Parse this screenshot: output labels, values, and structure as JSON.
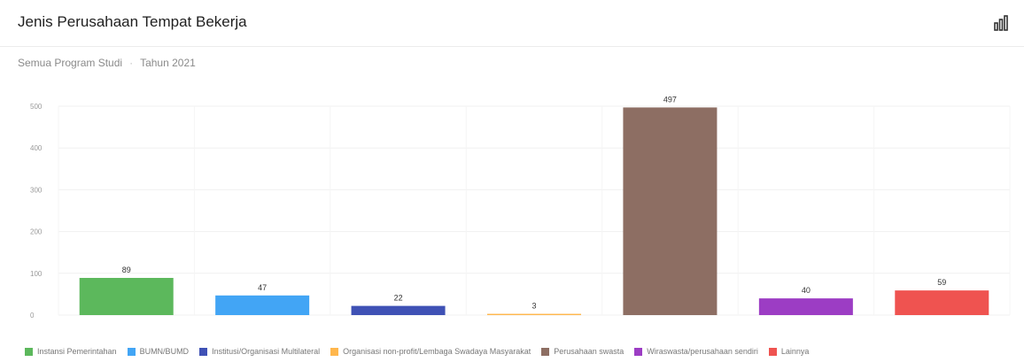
{
  "card": {
    "title": "Jenis Perusahaan Tempat Bekerja",
    "subtitle_program": "Semua Program Studi",
    "subtitle_separator": "·",
    "subtitle_year": "Tahun 2021",
    "icon": "bar-chart-icon"
  },
  "chart_data": {
    "type": "bar",
    "title": "Jenis Perusahaan Tempat Bekerja",
    "xlabel": "",
    "ylabel": "",
    "ylim": [
      0,
      500
    ],
    "yticks": [
      "0",
      "100",
      "200",
      "300",
      "400",
      "500"
    ],
    "grid": true,
    "legend_position": "bottom",
    "categories": [
      "Instansi Pemerintahan",
      "BUMN/BUMD",
      "Institusi/Organisasi Multilateral",
      "Organisasi non-profit/Lembaga Swadaya Masyarakat",
      "Perusahaan swasta",
      "Wiraswasta/perusahaan sendiri",
      "Lainnya"
    ],
    "values": [
      89,
      47,
      22,
      3,
      497,
      40,
      59
    ],
    "colors": [
      "#5cb85c",
      "#42a5f5",
      "#3f51b5",
      "#ffb74d",
      "#8d6e63",
      "#9c3dc4",
      "#ef5350"
    ]
  }
}
